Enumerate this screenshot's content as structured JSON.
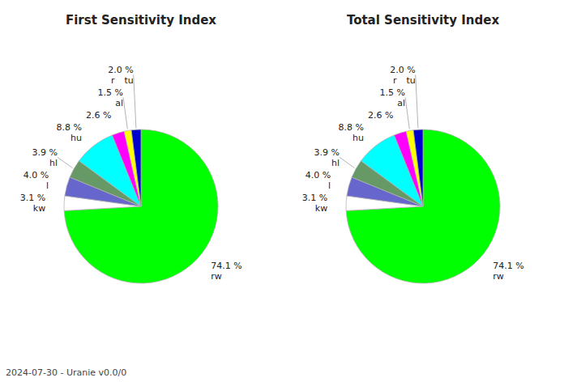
{
  "chart_data": [
    {
      "type": "pie",
      "title": "First Sensitivity Index",
      "categories": [
        "rw",
        "kw",
        "l",
        "hl",
        "hu",
        null,
        "al",
        "r"
      ],
      "values": [
        74.1,
        3.1,
        4.0,
        3.9,
        8.8,
        2.6,
        1.5,
        2.0
      ],
      "value_labels": [
        "74.1 %",
        "3.1 %",
        "4.0 %",
        "3.9 %",
        "8.8 %",
        "2.6 %",
        "1.5 %",
        "2.0 %"
      ],
      "colors": [
        "#00ff00",
        "#ffffff",
        "#6666cc",
        "#669966",
        "#00ffff",
        "#ff00ff",
        "#ffff00",
        "#0000cc"
      ],
      "data_labels": true,
      "annotations": [
        {
          "text": "tu",
          "category": "r"
        }
      ]
    },
    {
      "type": "pie",
      "title": "Total Sensitivity Index",
      "categories": [
        "rw",
        "kw",
        "l",
        "hl",
        "hu",
        null,
        "al",
        "r"
      ],
      "values": [
        74.1,
        3.1,
        4.0,
        3.9,
        8.8,
        2.6,
        1.5,
        2.0
      ],
      "value_labels": [
        "74.1 %",
        "3.1 %",
        "4.0 %",
        "3.9 %",
        "8.8 %",
        "2.6 %",
        "1.5 %",
        "2.0 %"
      ],
      "colors": [
        "#00ff00",
        "#ffffff",
        "#6666cc",
        "#669966",
        "#00ffff",
        "#ff00ff",
        "#ffff00",
        "#0000cc"
      ],
      "data_labels": true,
      "annotations": [
        {
          "text": "tu",
          "category": "r"
        }
      ]
    }
  ],
  "footer": "2024-07-30 - Uranie v0.0/0"
}
